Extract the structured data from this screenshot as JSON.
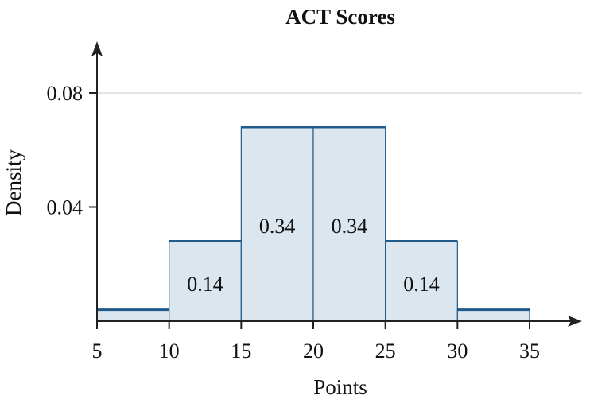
{
  "chart_data": {
    "type": "histogram",
    "title": "ACT Scores",
    "xlabel": "Points",
    "ylabel": "Density",
    "xlim": [
      5,
      35
    ],
    "ylim": [
      0,
      0.08
    ],
    "x_ticks": [
      "5",
      "10",
      "15",
      "20",
      "25",
      "30",
      "35"
    ],
    "y_ticks": [
      {
        "value": 0.04,
        "label": "0.04"
      },
      {
        "value": 0.08,
        "label": "0.08"
      }
    ],
    "bins": [
      {
        "start": 5,
        "end": 10,
        "density": 0.004,
        "label": ""
      },
      {
        "start": 10,
        "end": 15,
        "density": 0.028,
        "label": "0.14"
      },
      {
        "start": 15,
        "end": 20,
        "density": 0.068,
        "label": "0.34"
      },
      {
        "start": 20,
        "end": 25,
        "density": 0.068,
        "label": "0.34"
      },
      {
        "start": 25,
        "end": 30,
        "density": 0.028,
        "label": "0.14"
      },
      {
        "start": 30,
        "end": 35,
        "density": 0.004,
        "label": ""
      }
    ],
    "colors": {
      "fill": "#dbe6ee",
      "top_edge": "#1f5a8a",
      "bar_edge": "#1f5a8a"
    },
    "grid": true
  }
}
